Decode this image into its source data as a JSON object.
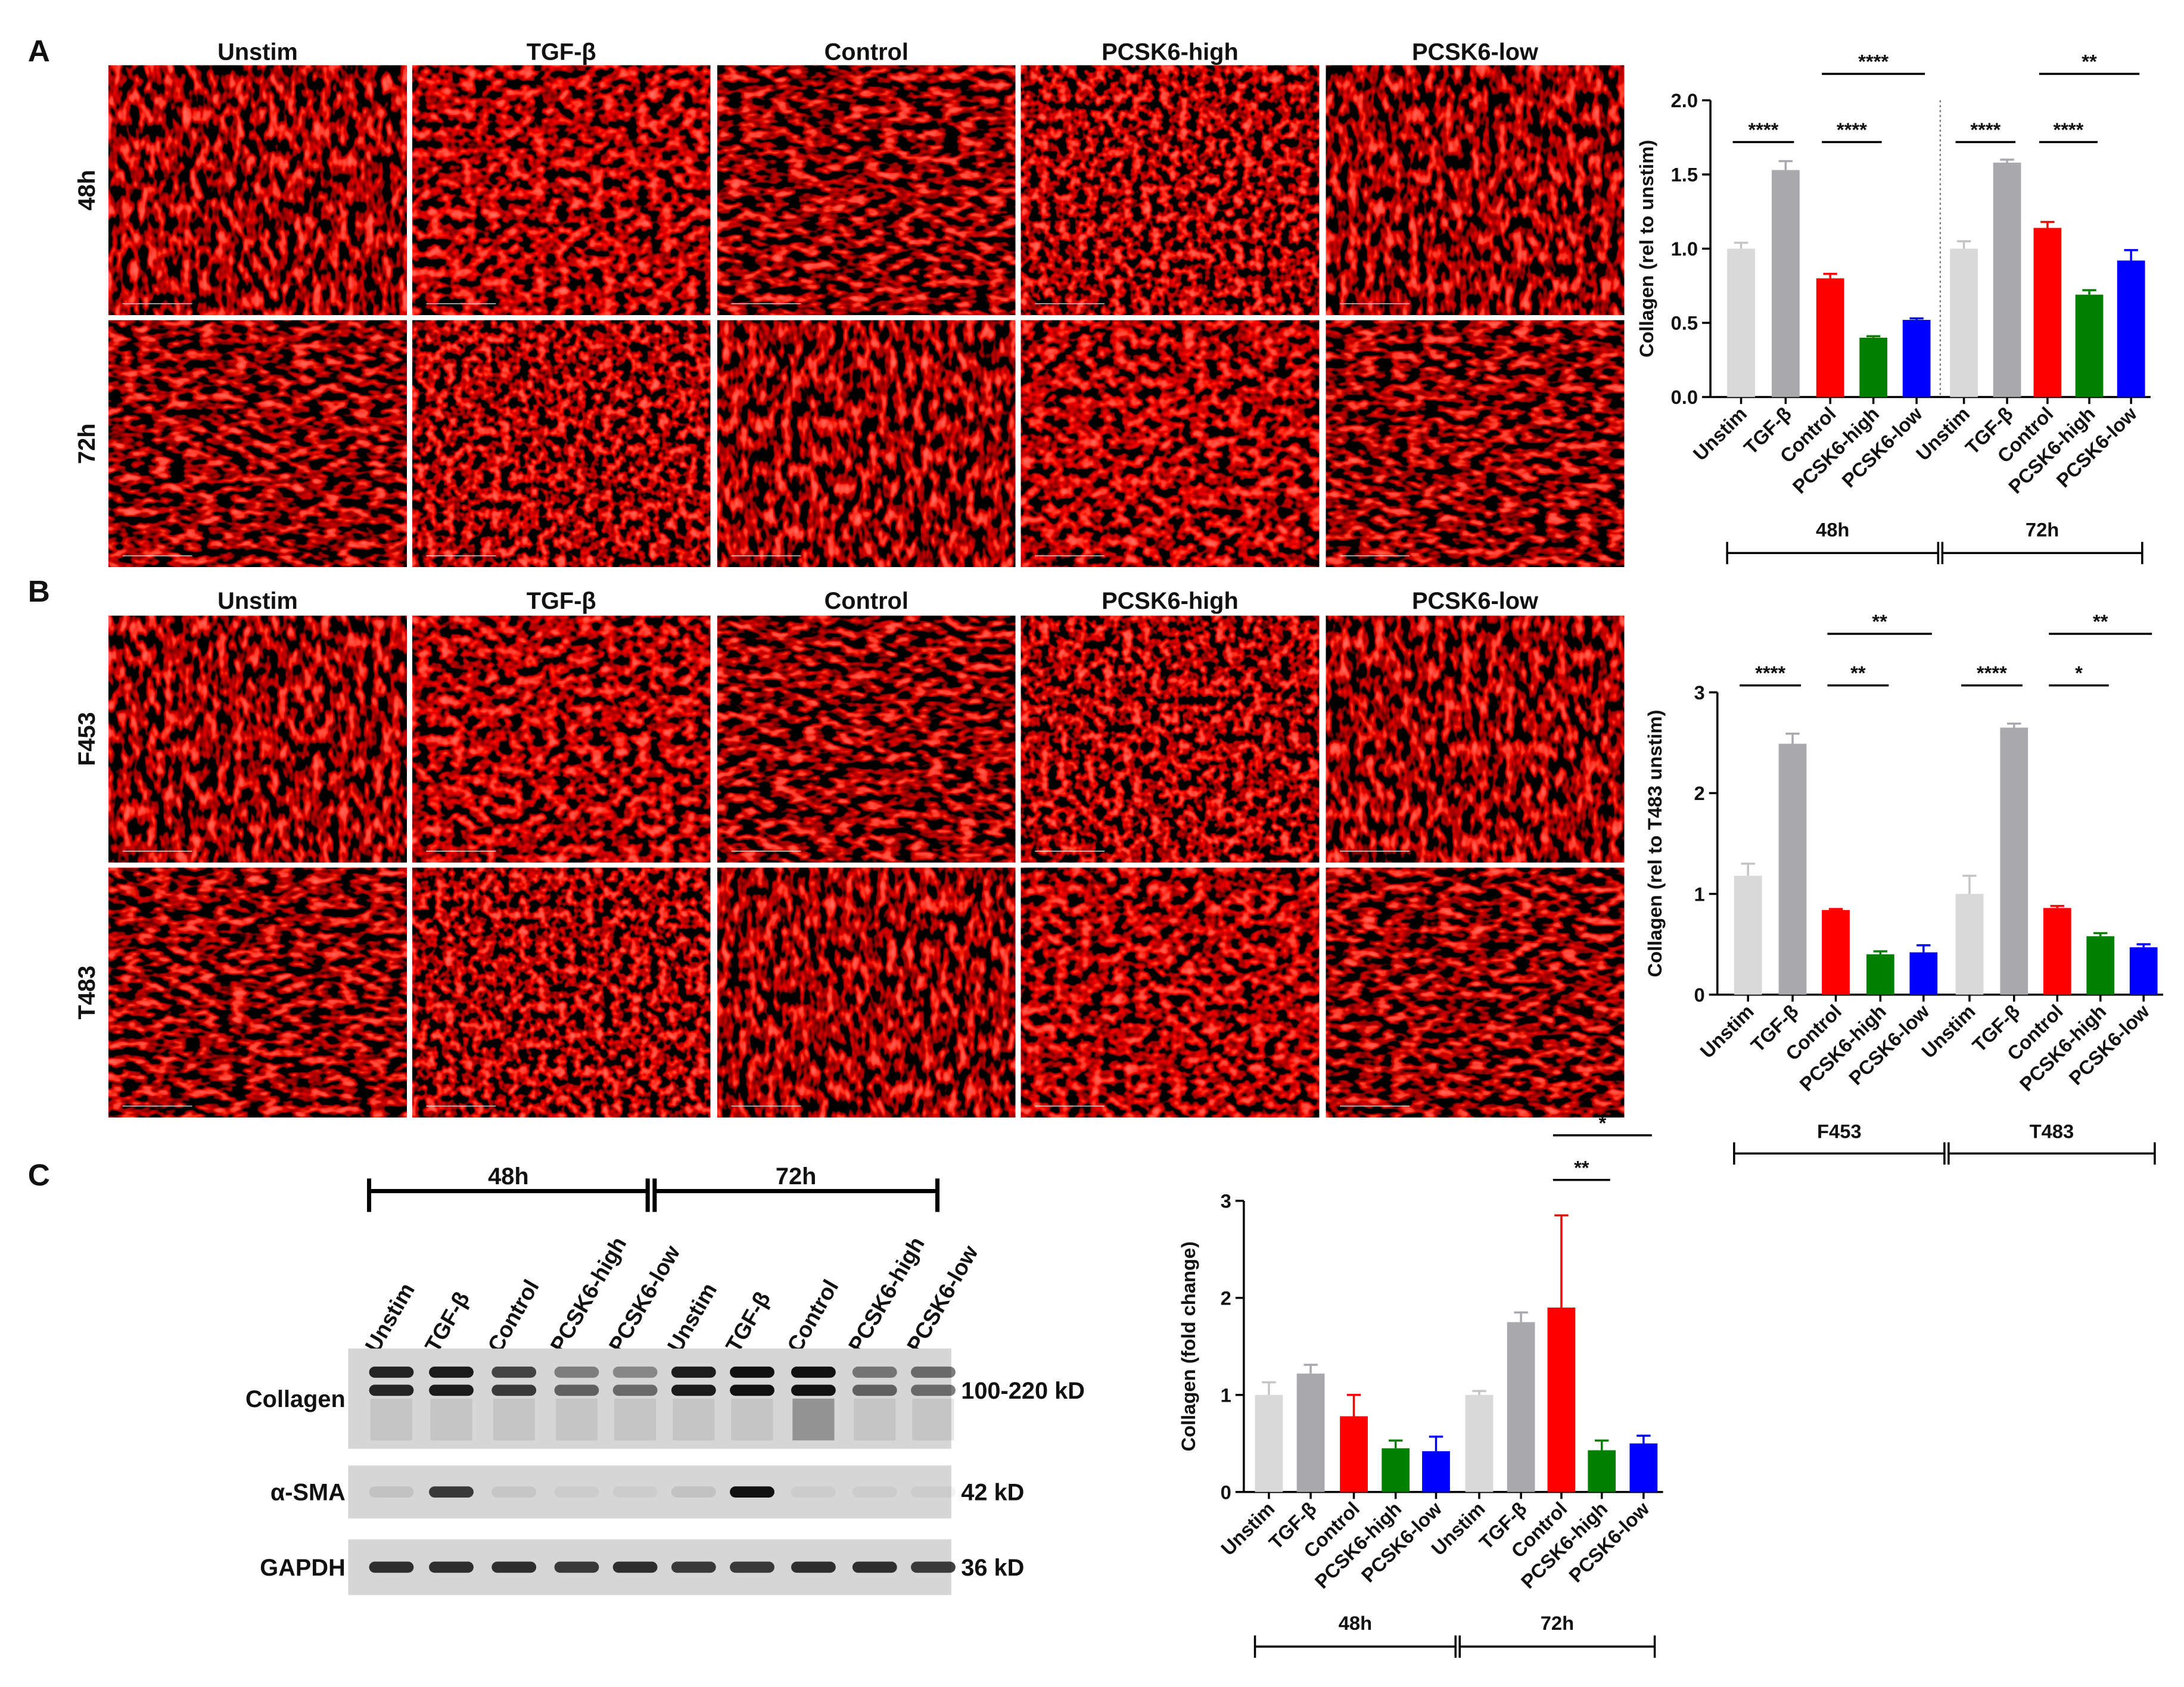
{
  "panel_letters": [
    "A",
    "B",
    "C"
  ],
  "panel_a": {
    "columns": [
      "Unstim",
      "TGF-β",
      "Control",
      "PCSK6-high",
      "PCSK6-low"
    ],
    "rows": [
      "48h",
      "72h"
    ]
  },
  "panel_b": {
    "columns": [
      "Unstim",
      "TGF-β",
      "Control",
      "PCSK6-high",
      "PCSK6-low"
    ],
    "rows": [
      "F453",
      "T483"
    ]
  },
  "panel_c": {
    "groups": [
      "48h",
      "72h"
    ],
    "lanes": [
      "Unstim",
      "TGF-β",
      "Control",
      "PCSK6-high",
      "PCSK6-low",
      "Unstim",
      "TGF-β",
      "Control",
      "PCSK6-high",
      "PCSK6-low"
    ],
    "rows": [
      {
        "name": "Collagen",
        "size": "100-220 kD"
      },
      {
        "name": "α-SMA",
        "size": "42 kD"
      },
      {
        "name": "GAPDH",
        "size": "36 kD"
      }
    ]
  },
  "chart_data": [
    {
      "type": "bar",
      "ylabel": "Collagen (rel to unstim)",
      "categories": [
        "Unstim",
        "TGF-β",
        "Control",
        "PCSK6-high",
        "PCSK6-low",
        "Unstim",
        "TGF-β",
        "Control",
        "PCSK6-high",
        "PCSK6-low"
      ],
      "values": [
        1.0,
        1.53,
        0.8,
        0.4,
        0.52,
        1.0,
        1.58,
        1.14,
        0.69,
        0.92
      ],
      "errors": [
        0.04,
        0.06,
        0.03,
        0.01,
        0.01,
        0.05,
        0.02,
        0.04,
        0.03,
        0.07
      ],
      "colors": [
        "#d9d9d9",
        "#a8a8ad",
        "#ff0000",
        "#008000",
        "#0000ff",
        "#d9d9d9",
        "#a8a8ad",
        "#ff0000",
        "#008000",
        "#0000ff"
      ],
      "groups": [
        "48h",
        "72h"
      ],
      "divider": true,
      "ylim": [
        0,
        2
      ],
      "yticks": [
        {
          "value": 0,
          "label": "0.0"
        },
        0.5,
        {
          "value": 1,
          "label": "1.0"
        },
        1.5,
        {
          "value": 2,
          "label": "2.0"
        }
      ],
      "annotations": [
        "****",
        "****",
        "****",
        "****",
        "****",
        "**"
      ]
    },
    {
      "type": "bar",
      "ylabel": "Collagen (rel to T483 unstim)",
      "categories": [
        "Unstim",
        "TGF-β",
        "Control",
        "PCSK6-high",
        "PCSK6-low",
        "Unstim",
        "TGF-β",
        "Control",
        "PCSK6-high",
        "PCSK6-low"
      ],
      "values": [
        1.18,
        2.49,
        0.84,
        0.4,
        0.42,
        1.0,
        2.65,
        0.86,
        0.58,
        0.47
      ],
      "errors": [
        0.12,
        0.1,
        0.01,
        0.03,
        0.07,
        0.18,
        0.04,
        0.02,
        0.03,
        0.03
      ],
      "colors": [
        "#d9d9d9",
        "#a8a8ad",
        "#ff0000",
        "#008000",
        "#0000ff",
        "#d9d9d9",
        "#a8a8ad",
        "#ff0000",
        "#008000",
        "#0000ff"
      ],
      "groups": [
        "F453",
        "T483"
      ],
      "divider": false,
      "ylim": [
        0,
        3
      ],
      "yticks": [
        0,
        1,
        2,
        3
      ],
      "annotations": [
        "****",
        "**",
        "**",
        "****",
        "*",
        "**"
      ]
    },
    {
      "type": "bar",
      "ylabel": "Collagen (fold change)",
      "categories": [
        "Unstim",
        "TGF-β",
        "Control",
        "PCSK6-high",
        "PCSK6-low",
        "Unstim",
        "TGF-β",
        "Control",
        "PCSK6-high",
        "PCSK6-low"
      ],
      "values": [
        1.0,
        1.22,
        0.78,
        0.45,
        0.42,
        1.0,
        1.75,
        1.9,
        0.43,
        0.5
      ],
      "errors": [
        0.13,
        0.09,
        0.22,
        0.08,
        0.15,
        0.04,
        0.1,
        0.95,
        0.1,
        0.08
      ],
      "colors": [
        "#d9d9d9",
        "#a8a8ad",
        "#ff0000",
        "#008000",
        "#0000ff",
        "#d9d9d9",
        "#a8a8ad",
        "#ff0000",
        "#008000",
        "#0000ff"
      ],
      "groups": [
        "48h",
        "72h"
      ],
      "divider": false,
      "ylim": [
        0,
        3
      ],
      "yticks": [
        0,
        1,
        2,
        3
      ],
      "annotations": [
        "**",
        "*"
      ]
    }
  ]
}
